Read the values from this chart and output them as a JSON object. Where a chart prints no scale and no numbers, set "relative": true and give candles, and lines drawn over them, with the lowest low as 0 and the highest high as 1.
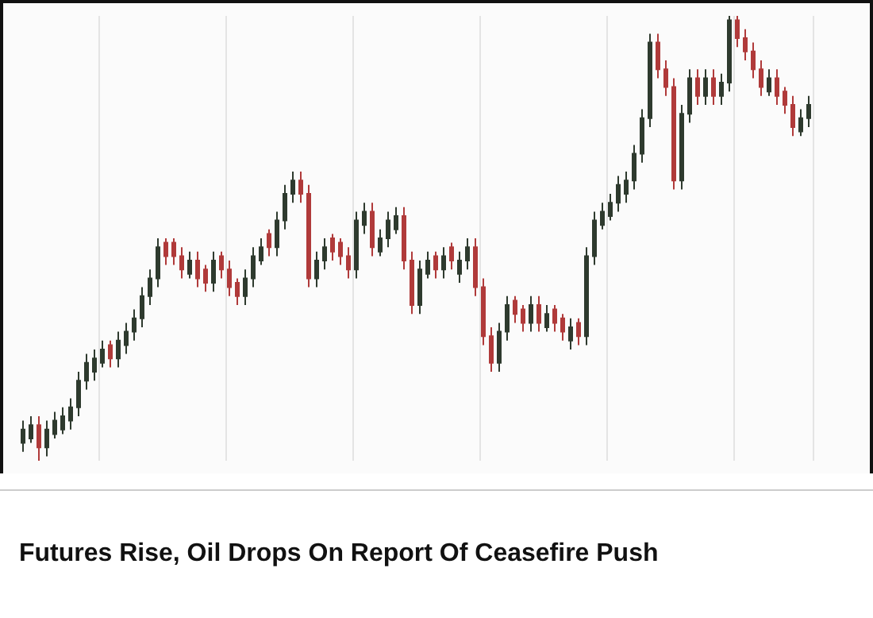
{
  "chart_data": {
    "type": "candlestick",
    "title": "Futures Rise, Oil Drops On Report Of Ceasefire Push",
    "relative": true,
    "grid": "x",
    "categories": [
      null,
      null,
      null,
      null,
      null,
      null,
      null,
      null,
      null,
      null,
      null,
      null,
      null,
      null,
      null,
      null,
      null,
      null,
      null,
      null,
      null,
      null,
      null,
      null,
      null,
      null,
      null,
      null,
      null,
      null,
      null,
      null,
      null,
      null,
      null,
      null,
      null,
      null,
      null,
      null,
      null,
      null,
      null,
      null,
      null,
      null,
      null,
      null,
      null,
      null,
      null,
      null,
      null,
      null,
      null,
      null,
      null,
      null,
      null,
      null,
      null,
      null,
      null,
      null,
      null,
      null,
      null,
      null,
      null,
      null,
      null,
      null,
      null,
      null,
      null,
      null,
      null,
      null,
      null,
      null,
      null,
      null,
      null,
      null,
      null,
      null,
      null,
      null,
      null,
      null,
      null,
      null,
      null,
      null,
      null,
      null,
      null,
      null,
      null,
      null
    ],
    "ohlc": [
      [
        0.04,
        0.09,
        0.02,
        0.07
      ],
      [
        0.05,
        0.1,
        0.04,
        0.08
      ],
      [
        0.08,
        0.1,
        0.0,
        0.03
      ],
      [
        0.03,
        0.09,
        0.01,
        0.07
      ],
      [
        0.06,
        0.11,
        0.05,
        0.09
      ],
      [
        0.07,
        0.12,
        0.06,
        0.1
      ],
      [
        0.09,
        0.14,
        0.07,
        0.12
      ],
      [
        0.12,
        0.2,
        0.1,
        0.18
      ],
      [
        0.18,
        0.24,
        0.16,
        0.22
      ],
      [
        0.2,
        0.25,
        0.18,
        0.23
      ],
      [
        0.22,
        0.27,
        0.21,
        0.25
      ],
      [
        0.26,
        0.27,
        0.21,
        0.23
      ],
      [
        0.23,
        0.29,
        0.21,
        0.27
      ],
      [
        0.26,
        0.31,
        0.24,
        0.29
      ],
      [
        0.29,
        0.34,
        0.27,
        0.32
      ],
      [
        0.32,
        0.39,
        0.3,
        0.37
      ],
      [
        0.37,
        0.43,
        0.35,
        0.41
      ],
      [
        0.41,
        0.5,
        0.39,
        0.48
      ],
      [
        0.49,
        0.5,
        0.44,
        0.46
      ],
      [
        0.49,
        0.5,
        0.44,
        0.46
      ],
      [
        0.46,
        0.48,
        0.41,
        0.43
      ],
      [
        0.42,
        0.47,
        0.41,
        0.45
      ],
      [
        0.45,
        0.47,
        0.39,
        0.41
      ],
      [
        0.43,
        0.44,
        0.38,
        0.4
      ],
      [
        0.4,
        0.47,
        0.38,
        0.45
      ],
      [
        0.46,
        0.47,
        0.41,
        0.43
      ],
      [
        0.43,
        0.45,
        0.37,
        0.39
      ],
      [
        0.4,
        0.41,
        0.35,
        0.37
      ],
      [
        0.37,
        0.43,
        0.35,
        0.41
      ],
      [
        0.41,
        0.48,
        0.39,
        0.46
      ],
      [
        0.45,
        0.5,
        0.44,
        0.48
      ],
      [
        0.51,
        0.52,
        0.46,
        0.48
      ],
      [
        0.48,
        0.56,
        0.46,
        0.54
      ],
      [
        0.54,
        0.62,
        0.52,
        0.6
      ],
      [
        0.6,
        0.65,
        0.58,
        0.63
      ],
      [
        0.63,
        0.65,
        0.58,
        0.6
      ],
      [
        0.6,
        0.62,
        0.39,
        0.41
      ],
      [
        0.41,
        0.47,
        0.39,
        0.45
      ],
      [
        0.45,
        0.5,
        0.43,
        0.48
      ],
      [
        0.5,
        0.51,
        0.45,
        0.47
      ],
      [
        0.49,
        0.5,
        0.44,
        0.46
      ],
      [
        0.46,
        0.48,
        0.41,
        0.43
      ],
      [
        0.43,
        0.56,
        0.41,
        0.54
      ],
      [
        0.53,
        0.58,
        0.51,
        0.56
      ],
      [
        0.56,
        0.58,
        0.46,
        0.48
      ],
      [
        0.47,
        0.52,
        0.46,
        0.5
      ],
      [
        0.5,
        0.56,
        0.48,
        0.54
      ],
      [
        0.52,
        0.57,
        0.51,
        0.55
      ],
      [
        0.55,
        0.57,
        0.43,
        0.45
      ],
      [
        0.45,
        0.47,
        0.33,
        0.35
      ],
      [
        0.35,
        0.45,
        0.33,
        0.43
      ],
      [
        0.42,
        0.47,
        0.41,
        0.45
      ],
      [
        0.46,
        0.47,
        0.41,
        0.43
      ],
      [
        0.43,
        0.48,
        0.41,
        0.46
      ],
      [
        0.48,
        0.49,
        0.43,
        0.45
      ],
      [
        0.42,
        0.47,
        0.4,
        0.45
      ],
      [
        0.45,
        0.5,
        0.43,
        0.48
      ],
      [
        0.48,
        0.5,
        0.37,
        0.39
      ],
      [
        0.39,
        0.41,
        0.26,
        0.28
      ],
      [
        0.28,
        0.3,
        0.2,
        0.22
      ],
      [
        0.22,
        0.31,
        0.2,
        0.29
      ],
      [
        0.29,
        0.37,
        0.27,
        0.35
      ],
      [
        0.36,
        0.37,
        0.31,
        0.33
      ],
      [
        0.34,
        0.35,
        0.29,
        0.31
      ],
      [
        0.31,
        0.37,
        0.29,
        0.35
      ],
      [
        0.35,
        0.37,
        0.29,
        0.31
      ],
      [
        0.3,
        0.35,
        0.29,
        0.33
      ],
      [
        0.34,
        0.35,
        0.29,
        0.31
      ],
      [
        0.32,
        0.33,
        0.27,
        0.29
      ],
      [
        0.27,
        0.32,
        0.25,
        0.3
      ],
      [
        0.31,
        0.32,
        0.26,
        0.28
      ],
      [
        0.28,
        0.48,
        0.26,
        0.46
      ],
      [
        0.46,
        0.56,
        0.44,
        0.54
      ],
      [
        0.53,
        0.58,
        0.52,
        0.56
      ],
      [
        0.55,
        0.6,
        0.54,
        0.58
      ],
      [
        0.58,
        0.64,
        0.56,
        0.62
      ],
      [
        0.6,
        0.65,
        0.58,
        0.63
      ],
      [
        0.63,
        0.71,
        0.61,
        0.69
      ],
      [
        0.69,
        0.79,
        0.67,
        0.77
      ],
      [
        0.77,
        0.96,
        0.75,
        0.94
      ],
      [
        0.94,
        0.96,
        0.86,
        0.88
      ],
      [
        0.88,
        0.9,
        0.82,
        0.84
      ],
      [
        0.84,
        0.86,
        0.61,
        0.63
      ],
      [
        0.63,
        0.8,
        0.61,
        0.78
      ],
      [
        0.78,
        0.88,
        0.76,
        0.86
      ],
      [
        0.86,
        0.88,
        0.8,
        0.82
      ],
      [
        0.82,
        0.88,
        0.8,
        0.86
      ],
      [
        0.86,
        0.88,
        0.8,
        0.82
      ],
      [
        0.82,
        0.87,
        0.8,
        0.85
      ],
      [
        0.85,
        1.0,
        0.83,
        0.99
      ],
      [
        0.99,
        1.0,
        0.93,
        0.95
      ],
      [
        0.95,
        0.97,
        0.9,
        0.92
      ],
      [
        0.92,
        0.94,
        0.86,
        0.88
      ],
      [
        0.88,
        0.9,
        0.82,
        0.84
      ],
      [
        0.83,
        0.88,
        0.82,
        0.86
      ],
      [
        0.86,
        0.88,
        0.8,
        0.82
      ],
      [
        0.83,
        0.84,
        0.78,
        0.8
      ],
      [
        0.8,
        0.82,
        0.73,
        0.75
      ],
      [
        0.74,
        0.79,
        0.73,
        0.77
      ],
      [
        0.77,
        0.82,
        0.75,
        0.8
      ]
    ]
  }
}
